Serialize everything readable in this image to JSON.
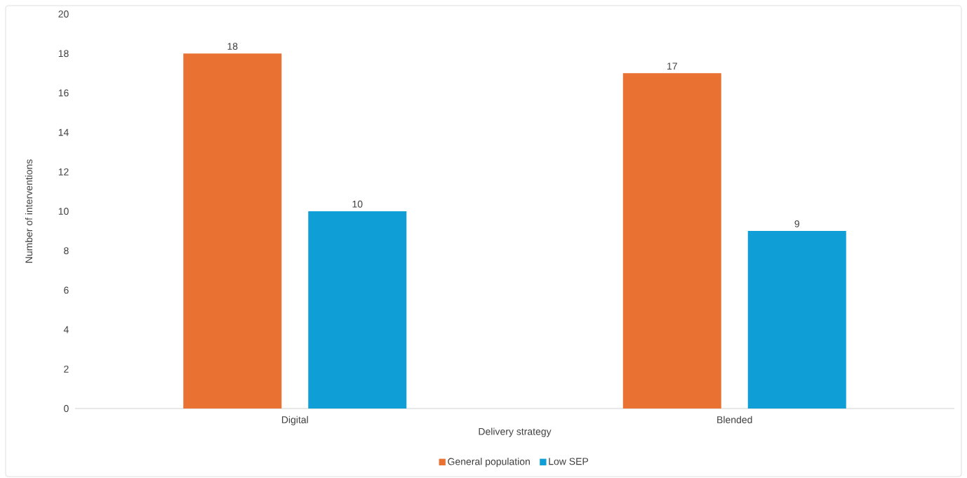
{
  "chart_data": {
    "type": "bar",
    "xlabel": "Delivery strategy",
    "ylabel": "Number of interventions",
    "categories": [
      "Digital",
      "Blended"
    ],
    "series": [
      {
        "name": "General population",
        "color": "#e97132",
        "values": [
          18,
          17
        ]
      },
      {
        "name": "Low SEP",
        "color": "#0f9ed5",
        "values": [
          10,
          9
        ]
      }
    ],
    "ylim": [
      0,
      20
    ],
    "yticks": [
      0,
      2,
      4,
      6,
      8,
      10,
      12,
      14,
      16,
      18,
      20
    ],
    "data_labels": true,
    "legend": "bottom"
  }
}
